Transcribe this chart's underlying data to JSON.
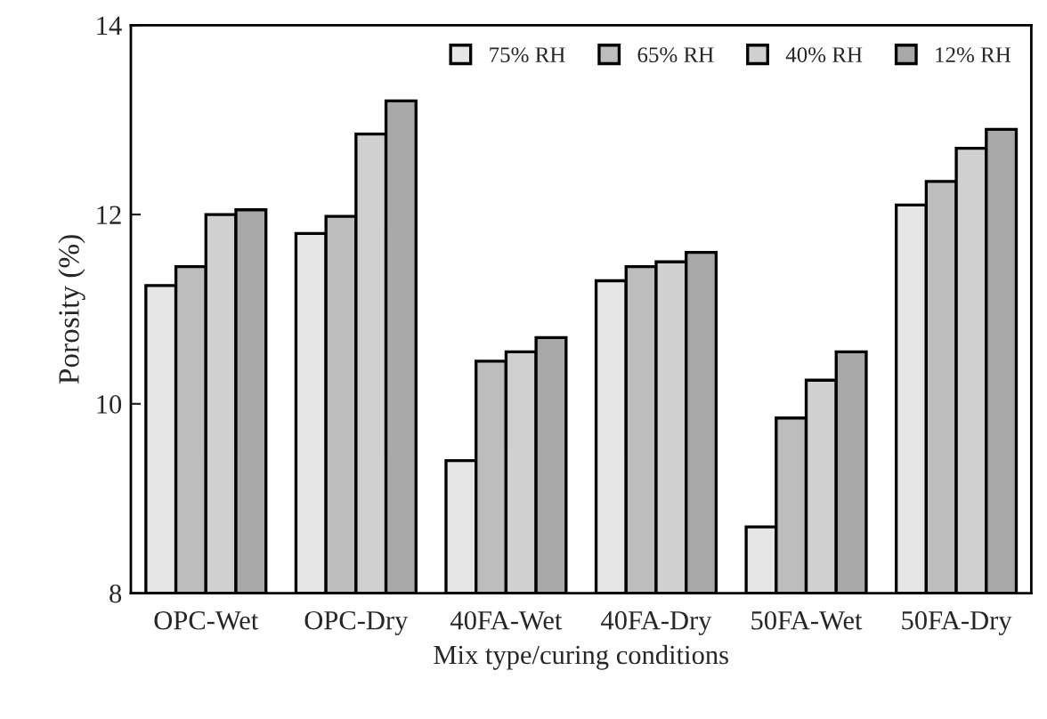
{
  "chart_data": {
    "type": "bar",
    "xlabel": "Mix type/curing conditions",
    "ylabel": "Porosity (%)",
    "categories": [
      "OPC-Wet",
      "OPC-Dry",
      "40FA-Wet",
      "40FA-Dry",
      "50FA-Wet",
      "50FA-Dry"
    ],
    "series": [
      {
        "name": "75% RH",
        "color": "#e6e6e6",
        "values": [
          11.25,
          11.8,
          9.4,
          11.3,
          8.7,
          12.1
        ]
      },
      {
        "name": "65% RH",
        "color": "#bdbdbd",
        "values": [
          11.45,
          11.98,
          10.45,
          11.45,
          9.85,
          12.35
        ]
      },
      {
        "name": "40% RH",
        "color": "#d0d0d0",
        "values": [
          12.0,
          12.85,
          10.55,
          11.5,
          10.25,
          12.7
        ]
      },
      {
        "name": "12% RH",
        "color": "#a8a8a8",
        "values": [
          12.05,
          13.2,
          10.7,
          11.6,
          10.55,
          12.9
        ]
      }
    ],
    "ylim": [
      8,
      14
    ],
    "yticks": [
      8,
      10,
      12,
      14
    ],
    "grid": false,
    "legend": "top right"
  }
}
